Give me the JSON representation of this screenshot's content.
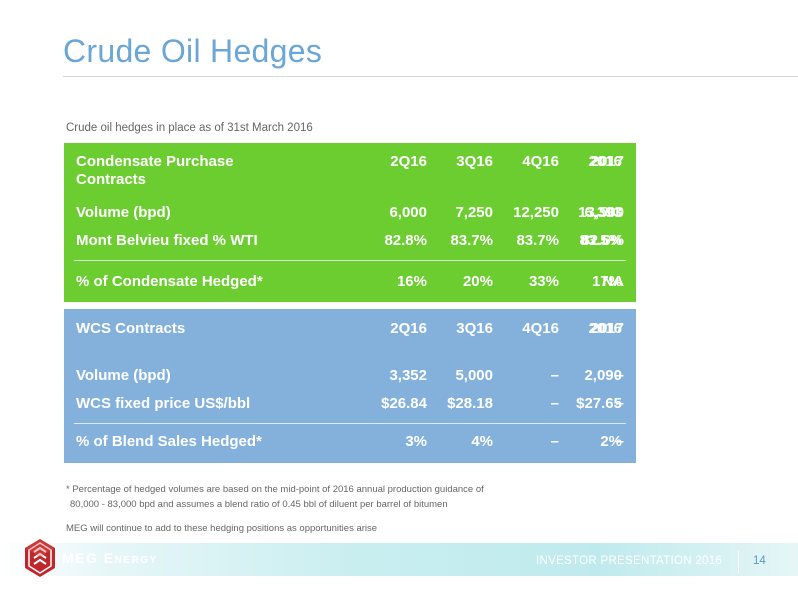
{
  "title": "Crude Oil Hedges",
  "subtitle": "Crude oil hedges in place as of 31st March 2016",
  "columns": [
    "2Q16",
    "3Q16",
    "4Q16",
    "2016",
    "2017"
  ],
  "condensate": {
    "header_line1": "Condensate Purchase",
    "header_line2": "Contracts",
    "rows": [
      {
        "label": "Volume (bpd)",
        "values": [
          "6,000",
          "7,250",
          "12,250",
          "6,393",
          "13,500"
        ]
      },
      {
        "label": "Mont Belvieu fixed % WTI",
        "values": [
          "82.8%",
          "83.7%",
          "83.7%",
          "83.5%",
          "82.6%"
        ]
      }
    ],
    "summary": {
      "label": "% of Condensate Hedged*",
      "values": [
        "16%",
        "20%",
        "33%",
        "17%",
        "NA"
      ]
    }
  },
  "wcs": {
    "header": "WCS Contracts",
    "rows": [
      {
        "label": "Volume (bpd)",
        "values": [
          "3,352",
          "5,000",
          "–",
          "2,090",
          "–"
        ]
      },
      {
        "label": "WCS fixed price US$/bbl",
        "values": [
          "$26.84",
          "$28.18",
          "–",
          "$27.65",
          "–"
        ]
      }
    ],
    "summary": {
      "label": "% of Blend Sales Hedged*",
      "values": [
        "3%",
        "4%",
        "–",
        "2%",
        "–"
      ]
    }
  },
  "footnote_line1": "* Percentage of hedged volumes are based on the mid-point of 2016 annual production guidance of",
  "footnote_line2": "80,000 - 83,000 bpd and assumes a blend ratio of 0.45 bbl of diluent per barrel of bitumen",
  "note": "MEG will continue to add to these hedging positions as opportunities arise",
  "footer": {
    "brand": "MEG Energy",
    "presentation": "INVESTOR PRESENTATION 2016",
    "page": "14"
  },
  "colors": {
    "title": "#6aa6d6",
    "condensate_panel": "#6ccd31",
    "wcs_panel": "#83b1dc",
    "logo_red": "#c0272d"
  }
}
